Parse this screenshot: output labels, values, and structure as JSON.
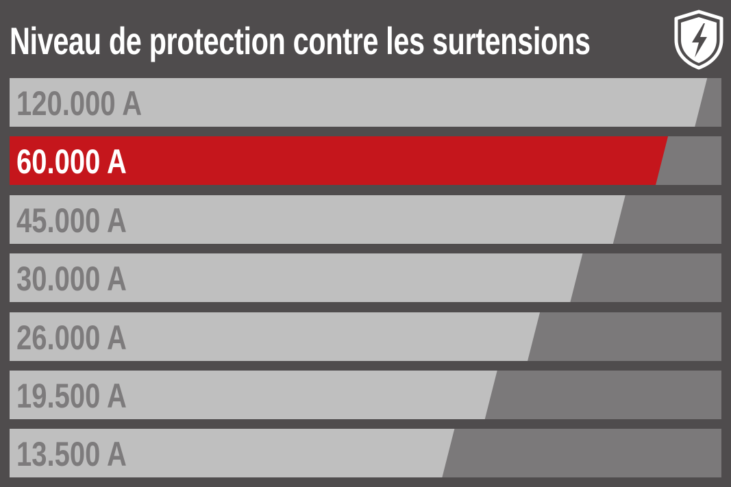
{
  "page": {
    "title": "Niveau de protection contre les surtensions",
    "icon": "shield-lightning-icon"
  },
  "colors": {
    "background": "#4f4c4d",
    "track": "#7b797a",
    "bar": "#bfbfbf",
    "highlight_bar": "#c5161c",
    "label": "#7d7b7c",
    "highlight_label": "#ffffff"
  },
  "chart_data": {
    "type": "bar",
    "orientation": "horizontal",
    "title": "Niveau de protection contre les surtensions",
    "xlabel": "",
    "ylabel": "",
    "categories": [
      "120.000 A",
      "60.000 A",
      "45.000 A",
      "30.000 A",
      "26.000 A",
      "19.500 A",
      "13.500 A"
    ],
    "values": [
      120000,
      60000,
      45000,
      30000,
      26000,
      19500,
      13500
    ],
    "bar_fill_fraction": [
      0.98,
      0.925,
      0.865,
      0.805,
      0.745,
      0.685,
      0.625
    ],
    "highlighted_index": 1,
    "grid": false,
    "legend": "none"
  }
}
